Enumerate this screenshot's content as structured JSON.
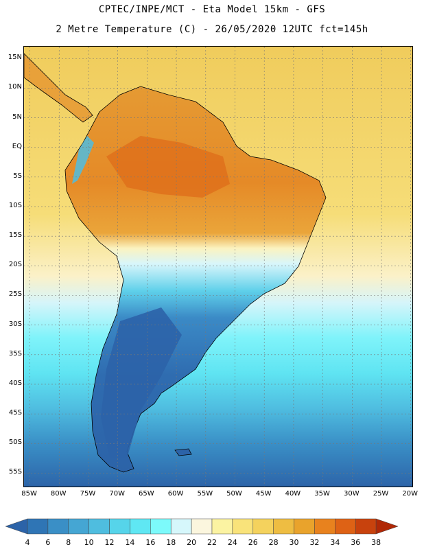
{
  "header": {
    "line1": "CPTEC/INPE/MCT -  Eta Model 15km - GFS",
    "line2": "2 Metre Temperature (C) - 26/05/2020 12UTC fct=145h"
  },
  "axes": {
    "lat_labels": [
      "15N",
      "10N",
      "5N",
      "EQ",
      "5S",
      "10S",
      "15S",
      "20S",
      "25S",
      "30S",
      "35S",
      "40S",
      "45S",
      "50S",
      "55S"
    ],
    "lat_values": [
      15,
      10,
      5,
      0,
      -5,
      -10,
      -15,
      -20,
      -25,
      -30,
      -35,
      -40,
      -45,
      -50,
      -55
    ],
    "lon_labels": [
      "85W",
      "80W",
      "75W",
      "70W",
      "65W",
      "60W",
      "55W",
      "50W",
      "45W",
      "40W",
      "35W",
      "30W",
      "25W",
      "20W"
    ],
    "lon_values": [
      -85,
      -80,
      -75,
      -70,
      -65,
      -60,
      -55,
      -50,
      -45,
      -40,
      -35,
      -30,
      -25,
      -20
    ],
    "lat_range": [
      -57.5,
      17
    ],
    "lon_range": [
      -86,
      -19.5
    ]
  },
  "colorbar": {
    "labels": [
      "4",
      "6",
      "8",
      "10",
      "12",
      "14",
      "16",
      "18",
      "20",
      "22",
      "24",
      "26",
      "28",
      "30",
      "32",
      "34",
      "36",
      "38"
    ],
    "colors": [
      "#2c63a8",
      "#2f75b5",
      "#3a8fc6",
      "#45a6d3",
      "#4fbddf",
      "#56d4ea",
      "#5fe7f3",
      "#7cfafb",
      "#d6f7fb",
      "#fbf6de",
      "#fbf3a2",
      "#f9e37a",
      "#f4d25d",
      "#eebd42",
      "#e9a32c",
      "#e8821e",
      "#de6215",
      "#c8420d",
      "#b02806"
    ]
  },
  "regions": {
    "ocean_top": "#f2d56a",
    "land_hot": "#e47d22",
    "land_warm": "#eaa83a",
    "highland": "#ded9b8",
    "land_cool": "#3b8ac6",
    "patagonia": "#2f67ad"
  }
}
